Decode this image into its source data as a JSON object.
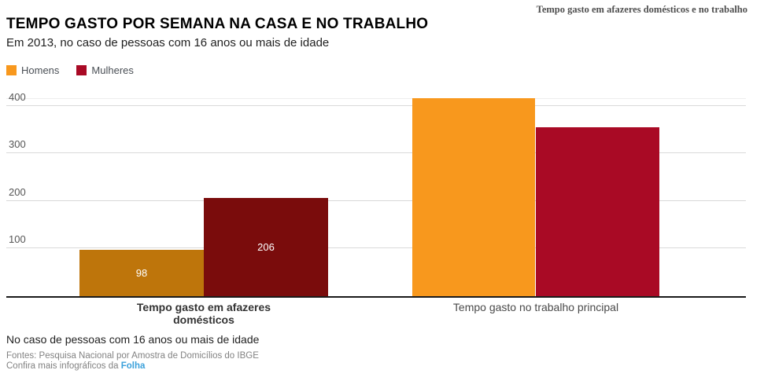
{
  "header": {
    "kicker": "Tempo gasto em afazeres domésticos e no trabalho",
    "title": "TEMPO GASTO POR SEMANA NA CASA E NO TRABALHO",
    "subtitle": "Em 2013, no caso de pessoas com 16 anos ou mais de idade"
  },
  "legend": {
    "items": [
      {
        "label": "Homens",
        "color": "#F8981D"
      },
      {
        "label": "Mulheres",
        "color": "#A90A25"
      }
    ]
  },
  "chart_data": {
    "type": "bar",
    "categories": [
      "Tempo gasto em afazeres domésticos",
      "Tempo gasto no trabalho principal"
    ],
    "series": [
      {
        "name": "Homens",
        "values": [
          98,
          416
        ],
        "colors_by_category": [
          "#BE750B",
          "#F8981D"
        ]
      },
      {
        "name": "Mulheres",
        "values": [
          206,
          355
        ],
        "colors_by_category": [
          "#7A0C0C",
          "#A90A25"
        ]
      }
    ],
    "value_labels": [
      [
        "98",
        "206"
      ],
      [
        "",
        ""
      ]
    ],
    "value_label_color": "#FFFFFF",
    "yticks": [
      100,
      200,
      300,
      400
    ],
    "ylim": [
      0,
      416
    ],
    "grid": true,
    "legend_position": "top-left",
    "gridline_color": "#d9d9d9",
    "axis_color": "#1a1a1a"
  },
  "footer": {
    "note": "No caso de pessoas com 16 anos ou mais de idade",
    "sources": "Fontes: Pesquisa Nacional por Amostra de Domicílios do IBGE",
    "more_prefix": "Confira mais infográficos da ",
    "more_link": "Folha",
    "link_color": "#3BA1DB"
  }
}
